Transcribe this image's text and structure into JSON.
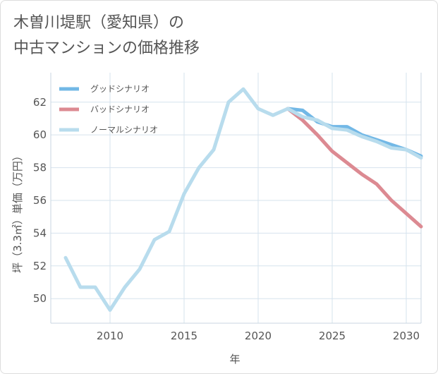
{
  "title_line1": "木曽川堤駅（愛知県）の",
  "title_line2": "中古マンションの価格推移",
  "chart_data": {
    "type": "line",
    "xlabel": "年",
    "ylabel": "坪（3.3㎡）単価（万円）",
    "xlim": [
      2006,
      2031
    ],
    "ylim": [
      48.5,
      63.8
    ],
    "xticks": [
      2010,
      2015,
      2020,
      2025,
      2030
    ],
    "yticks": [
      50,
      52,
      54,
      56,
      58,
      60,
      62
    ],
    "grid": true,
    "legend_position": "top-left",
    "series": [
      {
        "name": "グッドシナリオ",
        "color": "#72b8e6",
        "x": [
          2022,
          2023,
          2024,
          2025,
          2026,
          2027,
          2028,
          2029,
          2030,
          2031
        ],
        "values": [
          61.6,
          61.5,
          60.8,
          60.5,
          60.5,
          60.0,
          59.7,
          59.4,
          59.1,
          58.7
        ]
      },
      {
        "name": "バッドシナリオ",
        "color": "#dc8a92",
        "x": [
          2022,
          2023,
          2024,
          2025,
          2026,
          2027,
          2028,
          2029,
          2030,
          2031
        ],
        "values": [
          61.6,
          60.9,
          60.0,
          59.0,
          58.3,
          57.6,
          57.0,
          56.0,
          55.2,
          54.4
        ]
      },
      {
        "name": "ノーマルシナリオ",
        "color": "#b8dced",
        "x": [
          2007,
          2008,
          2009,
          2010,
          2011,
          2012,
          2013,
          2014,
          2015,
          2016,
          2017,
          2018,
          2019,
          2020,
          2021,
          2022,
          2023,
          2024,
          2025,
          2026,
          2027,
          2028,
          2029,
          2030,
          2031
        ],
        "values": [
          52.5,
          50.7,
          50.7,
          49.3,
          50.7,
          51.8,
          53.6,
          54.1,
          56.4,
          58.0,
          59.1,
          62.0,
          62.8,
          61.6,
          61.2,
          61.6,
          61.1,
          60.9,
          60.4,
          60.3,
          59.9,
          59.6,
          59.2,
          59.1,
          58.6
        ]
      }
    ]
  }
}
